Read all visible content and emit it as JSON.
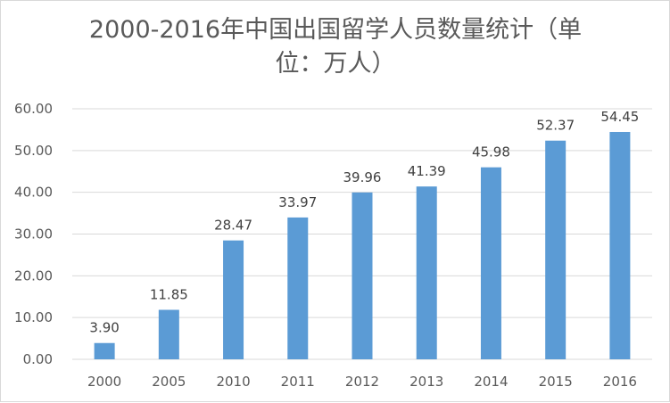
{
  "chart_data": {
    "type": "bar",
    "title": "2000-2016年中国出国留学人员数量统计（单位：万人）",
    "xlabel": "",
    "ylabel": "",
    "categories": [
      "2000",
      "2005",
      "2010",
      "2011",
      "2012",
      "2013",
      "2014",
      "2015",
      "2016"
    ],
    "values": [
      3.9,
      11.85,
      28.47,
      33.97,
      39.96,
      41.39,
      45.98,
      52.37,
      54.45
    ],
    "value_labels": [
      "3.90",
      "11.85",
      "28.47",
      "33.97",
      "39.96",
      "41.39",
      "45.98",
      "52.37",
      "54.45"
    ],
    "ylim": [
      0,
      60
    ],
    "yticks": [
      "0.00",
      "10.00",
      "20.00",
      "30.00",
      "40.00",
      "50.00",
      "60.00"
    ],
    "grid": true,
    "legend": "none",
    "colors": {
      "bar": "#5b9bd5",
      "grid": "#d9d9d9",
      "text": "#595959",
      "label": "#404040"
    }
  }
}
